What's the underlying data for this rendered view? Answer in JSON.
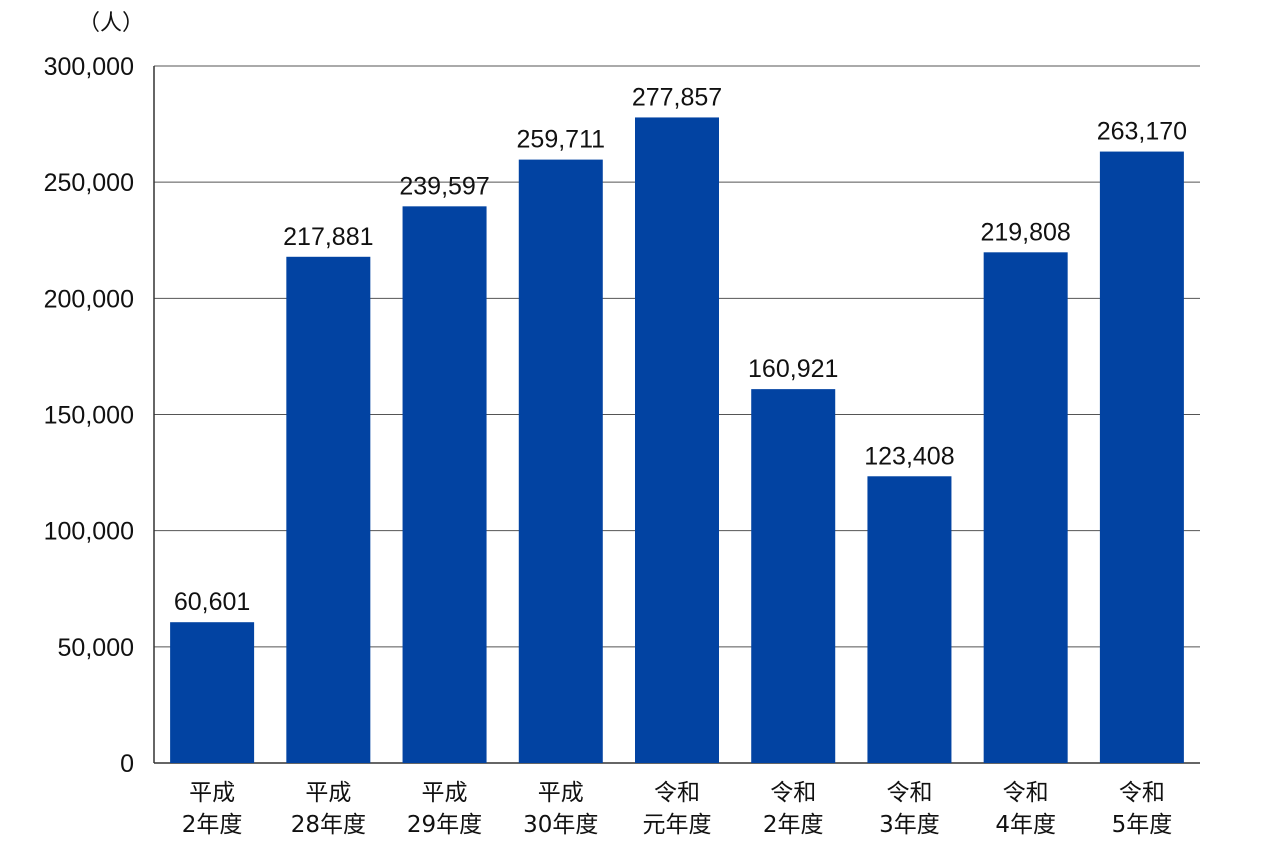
{
  "chart_data": {
    "type": "bar",
    "unit_label": "（人）",
    "categories": [
      [
        "平成",
        "2年度"
      ],
      [
        "平成",
        "28年度"
      ],
      [
        "平成",
        "29年度"
      ],
      [
        "平成",
        "30年度"
      ],
      [
        "令和",
        "元年度"
      ],
      [
        "令和",
        "2年度"
      ],
      [
        "令和",
        "3年度"
      ],
      [
        "令和",
        "4年度"
      ],
      [
        "令和",
        "5年度"
      ]
    ],
    "values": [
      60601,
      217881,
      239597,
      259711,
      277857,
      160921,
      123408,
      219808,
      263170
    ],
    "value_labels": [
      "60,601",
      "217,881",
      "239,597",
      "259,711",
      "277,857",
      "160,921",
      "123,408",
      "219,808",
      "263,170"
    ],
    "ylim": [
      0,
      300000
    ],
    "y_ticks": [
      0,
      50000,
      100000,
      150000,
      200000,
      250000,
      300000
    ],
    "y_tick_labels": [
      "0",
      "50,000",
      "100,000",
      "150,000",
      "200,000",
      "250,000",
      "300,000"
    ],
    "grid": true,
    "legend": "none",
    "colors": {
      "bar": "#0243a2",
      "grid": "#555555",
      "axis": "#333333"
    }
  }
}
